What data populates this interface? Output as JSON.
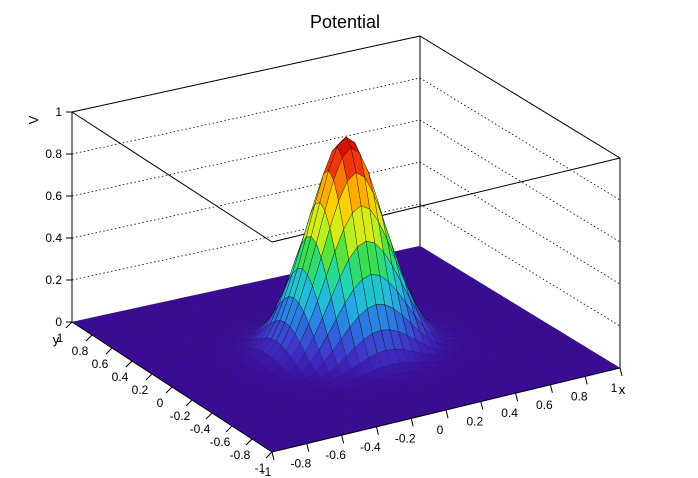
{
  "chart_data": {
    "type": "surface",
    "title": "Potential",
    "xlabel": "x",
    "ylabel": "y",
    "zlabel": "V",
    "xlim": [
      -1,
      1
    ],
    "ylim": [
      -1,
      1
    ],
    "zlim": [
      0,
      1
    ],
    "x_ticks": [
      "-1",
      "-0.8",
      "-0.6",
      "-0.4",
      "-0.2",
      "0",
      "0.2",
      "0.4",
      "0.6",
      "0.8",
      "1"
    ],
    "y_ticks": [
      "-1",
      "-0.8",
      "-0.6",
      "-0.4",
      "-0.2",
      "0",
      "0.2",
      "0.4",
      "0.6",
      "0.8",
      "1"
    ],
    "z_ticks": [
      "0",
      "0.2",
      "0.4",
      "0.6",
      "0.8",
      "1"
    ],
    "grid": true,
    "colormap": [
      "#3b0a99",
      "#4030c8",
      "#2c6fe0",
      "#25b0e5",
      "#20d6b0",
      "#40e040",
      "#c8f020",
      "#ffe000",
      "#ff9a00",
      "#f03010",
      "#c80000"
    ],
    "peak": {
      "x": 0,
      "y": 0,
      "value": 1.0
    }
  }
}
